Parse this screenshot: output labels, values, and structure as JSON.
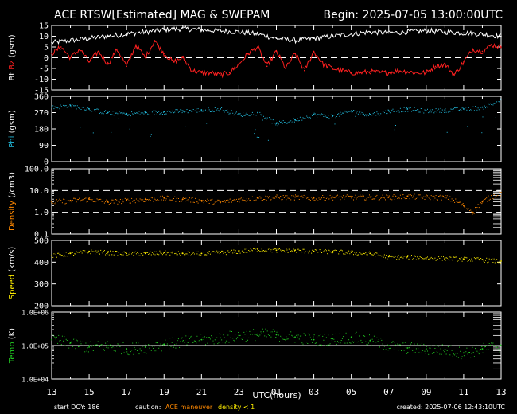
{
  "header": {
    "title": "ACE RTSW[Estimated] MAG & SWEPAM",
    "begin": "Begin: 2025-07-05 13:00:00UTC"
  },
  "footer": {
    "start_doy": "start DOY: 186",
    "caution_label": "caution:",
    "caution_maneuver": "ACE maneuver",
    "caution_density": "density < 1",
    "created": "created: 2025-07-06 12:43:10UTC"
  },
  "colors": {
    "background": "#000000",
    "bt": "#ffffff",
    "bz": "#ff2020",
    "phi": "#22bbdd",
    "density": "#ff8800",
    "speed": "#ffee00",
    "temp": "#22cc22",
    "maneuver": "#ff8800",
    "density_caution": "#ffee00"
  },
  "chart_data": [
    {
      "type": "line",
      "panel": "mag",
      "ylabel_parts": [
        {
          "text": "Bt",
          "color": "#ffffff"
        },
        {
          "text": " Bz",
          "color": "#ff2020"
        },
        {
          "text": " (gsm)",
          "color": "#ffffff"
        }
      ],
      "ylim": [
        -15,
        15
      ],
      "yticks": [
        15,
        10,
        5,
        0,
        -5,
        -10,
        -15
      ],
      "ytick_labels": [
        "15",
        "10",
        "5",
        "0",
        "-5",
        "-10",
        "-15"
      ],
      "reference_lines": [
        0
      ],
      "x_hours_start": 13,
      "x_hours_span": 24,
      "series": [
        {
          "name": "Bt",
          "color": "#ffffff",
          "points": [
            [
              0,
              7
            ],
            [
              1,
              8
            ],
            [
              2,
              9
            ],
            [
              3,
              10
            ],
            [
              4,
              11
            ],
            [
              5,
              12
            ],
            [
              6,
              13
            ],
            [
              7,
              13.5
            ],
            [
              8,
              13
            ],
            [
              9,
              12.5
            ],
            [
              10,
              12
            ],
            [
              11,
              11
            ],
            [
              12,
              9
            ],
            [
              13,
              8
            ],
            [
              14,
              9
            ],
            [
              15,
              10
            ],
            [
              16,
              11
            ],
            [
              17,
              12
            ],
            [
              18,
              11.5
            ],
            [
              19,
              12
            ],
            [
              20,
              12.5
            ],
            [
              21,
              12
            ],
            [
              22,
              11.5
            ],
            [
              23,
              11
            ],
            [
              24,
              10
            ]
          ]
        },
        {
          "name": "Bz",
          "color": "#ff2020",
          "points": [
            [
              0,
              2
            ],
            [
              0.5,
              5
            ],
            [
              1,
              0
            ],
            [
              1.5,
              4
            ],
            [
              2,
              -2
            ],
            [
              2.5,
              3
            ],
            [
              3,
              -3
            ],
            [
              3.5,
              4
            ],
            [
              4,
              -4
            ],
            [
              4.5,
              6
            ],
            [
              5,
              0
            ],
            [
              5.5,
              8
            ],
            [
              6,
              2
            ],
            [
              6.5,
              -2
            ],
            [
              7,
              0
            ],
            [
              7.5,
              -6
            ],
            [
              8,
              -7
            ],
            [
              8.5,
              -7
            ],
            [
              9,
              -8
            ],
            [
              9.5,
              -7
            ],
            [
              10,
              -3
            ],
            [
              10.5,
              2
            ],
            [
              11,
              5
            ],
            [
              11.5,
              -4
            ],
            [
              12,
              3
            ],
            [
              12.5,
              -5
            ],
            [
              13,
              2
            ],
            [
              13.5,
              -6
            ],
            [
              14,
              3
            ],
            [
              14.5,
              -3
            ],
            [
              15,
              -5
            ],
            [
              15.5,
              -6
            ],
            [
              16,
              -7
            ],
            [
              16.5,
              -7
            ],
            [
              17,
              -6.5
            ],
            [
              17.5,
              -7
            ],
            [
              18,
              -7
            ],
            [
              18.5,
              -6
            ],
            [
              19,
              -6.5
            ],
            [
              19.5,
              -7
            ],
            [
              20,
              -7
            ],
            [
              20.5,
              -4
            ],
            [
              21,
              -3
            ],
            [
              21.5,
              -8
            ],
            [
              22,
              -2
            ],
            [
              22.5,
              4
            ],
            [
              23,
              3
            ],
            [
              23.5,
              6
            ],
            [
              24,
              5
            ]
          ]
        }
      ]
    },
    {
      "type": "scatter",
      "panel": "phi",
      "ylabel_parts": [
        {
          "text": "Phi",
          "color": "#22bbdd"
        },
        {
          "text": " (gsm)",
          "color": "#ffffff"
        }
      ],
      "ylim": [
        0,
        360
      ],
      "yticks": [
        360,
        270,
        180,
        90,
        0
      ],
      "ytick_labels": [
        "360",
        "270",
        "180",
        "90",
        "0"
      ],
      "x_hours_start": 13,
      "x_hours_span": 24,
      "series": [
        {
          "name": "Phi",
          "color": "#22bbdd",
          "points": [
            [
              0,
              300
            ],
            [
              1,
              310
            ],
            [
              2,
              290
            ],
            [
              3,
              270
            ],
            [
              4,
              265
            ],
            [
              5,
              270
            ],
            [
              6,
              275
            ],
            [
              7,
              280
            ],
            [
              8,
              285
            ],
            [
              9,
              290
            ],
            [
              10,
              260
            ],
            [
              11,
              270
            ],
            [
              12,
              210
            ],
            [
              13,
              230
            ],
            [
              14,
              260
            ],
            [
              15,
              250
            ],
            [
              16,
              280
            ],
            [
              17,
              260
            ],
            [
              18,
              280
            ],
            [
              19,
              290
            ],
            [
              20,
              280
            ],
            [
              21,
              285
            ],
            [
              22,
              290
            ],
            [
              23,
              300
            ],
            [
              24,
              340
            ]
          ]
        }
      ]
    },
    {
      "type": "scatter",
      "panel": "density",
      "ylabel_parts": [
        {
          "text": "Density",
          "color": "#ff8800"
        },
        {
          "text": " (/cm3)",
          "color": "#ffffff"
        }
      ],
      "scale": "log",
      "ylim": [
        0.1,
        100
      ],
      "yticks": [
        100,
        10,
        1,
        0.1
      ],
      "ytick_labels": [
        "100.0",
        "10.0",
        "1.0",
        "0.1"
      ],
      "reference_lines": [
        10,
        1
      ],
      "x_hours_start": 13,
      "x_hours_span": 24,
      "series": [
        {
          "name": "Density",
          "color": "#ff8800",
          "points": [
            [
              0,
              3
            ],
            [
              1,
              3.5
            ],
            [
              2,
              4
            ],
            [
              3,
              3
            ],
            [
              4,
              3.5
            ],
            [
              5,
              4
            ],
            [
              6,
              4.5
            ],
            [
              7,
              4
            ],
            [
              8,
              3.5
            ],
            [
              9,
              3
            ],
            [
              10,
              4
            ],
            [
              11,
              4.5
            ],
            [
              12,
              5
            ],
            [
              13,
              5
            ],
            [
              14,
              4.5
            ],
            [
              15,
              5
            ],
            [
              16,
              5
            ],
            [
              17,
              5
            ],
            [
              18,
              5
            ],
            [
              19,
              5.5
            ],
            [
              20,
              5
            ],
            [
              21,
              5
            ],
            [
              22,
              2
            ],
            [
              22.5,
              1
            ],
            [
              23,
              3
            ],
            [
              24,
              8
            ]
          ]
        }
      ]
    },
    {
      "type": "scatter",
      "panel": "speed",
      "ylabel_parts": [
        {
          "text": "Speed",
          "color": "#ffee00"
        },
        {
          "text": " (km/s)",
          "color": "#ffffff"
        }
      ],
      "ylim": [
        200,
        500
      ],
      "yticks": [
        500,
        400,
        300,
        200
      ],
      "ytick_labels": [
        "500",
        "400",
        "300",
        "200"
      ],
      "x_hours_start": 13,
      "x_hours_span": 24,
      "series": [
        {
          "name": "Speed",
          "color": "#ffee00",
          "points": [
            [
              0,
              430
            ],
            [
              1,
              440
            ],
            [
              2,
              450
            ],
            [
              3,
              445
            ],
            [
              4,
              440
            ],
            [
              5,
              440
            ],
            [
              6,
              445
            ],
            [
              7,
              440
            ],
            [
              8,
              440
            ],
            [
              9,
              445
            ],
            [
              10,
              450
            ],
            [
              11,
              460
            ],
            [
              12,
              455
            ],
            [
              13,
              455
            ],
            [
              14,
              450
            ],
            [
              15,
              450
            ],
            [
              16,
              445
            ],
            [
              17,
              440
            ],
            [
              18,
              425
            ],
            [
              19,
              425
            ],
            [
              20,
              420
            ],
            [
              21,
              418
            ],
            [
              22,
              415
            ],
            [
              23,
              412
            ],
            [
              24,
              405
            ]
          ]
        }
      ]
    },
    {
      "type": "scatter",
      "panel": "temp",
      "ylabel_parts": [
        {
          "text": "Temp",
          "color": "#22cc22"
        },
        {
          "text": " (K)",
          "color": "#ffffff"
        }
      ],
      "scale": "log",
      "ylim": [
        10000,
        1000000
      ],
      "yticks": [
        1000000,
        100000,
        10000
      ],
      "ytick_labels": [
        "1.0E+06",
        "1.0E+05",
        "1.0E+04"
      ],
      "reference_lines": [
        100000
      ],
      "x_hours_start": 13,
      "x_hours_span": 24,
      "series": [
        {
          "name": "Temp",
          "color": "#22cc22",
          "points": [
            [
              0,
              150000
            ],
            [
              1,
              120000
            ],
            [
              2,
              90000
            ],
            [
              3,
              100000
            ],
            [
              4,
              80000
            ],
            [
              5,
              90000
            ],
            [
              6,
              110000
            ],
            [
              7,
              130000
            ],
            [
              8,
              150000
            ],
            [
              9,
              170000
            ],
            [
              10,
              200000
            ],
            [
              11,
              220000
            ],
            [
              12,
              210000
            ],
            [
              13,
              180000
            ],
            [
              14,
              150000
            ],
            [
              15,
              160000
            ],
            [
              16,
              180000
            ],
            [
              17,
              140000
            ],
            [
              18,
              100000
            ],
            [
              19,
              85000
            ],
            [
              20,
              80000
            ],
            [
              21,
              75000
            ],
            [
              22,
              60000
            ],
            [
              23,
              80000
            ],
            [
              24,
              100000
            ]
          ]
        }
      ]
    }
  ],
  "xaxis": {
    "label": "UTC(hours)",
    "tick_labels": [
      "13",
      "15",
      "17",
      "19",
      "21",
      "23",
      "01",
      "03",
      "05",
      "07",
      "09",
      "11",
      "13"
    ]
  }
}
